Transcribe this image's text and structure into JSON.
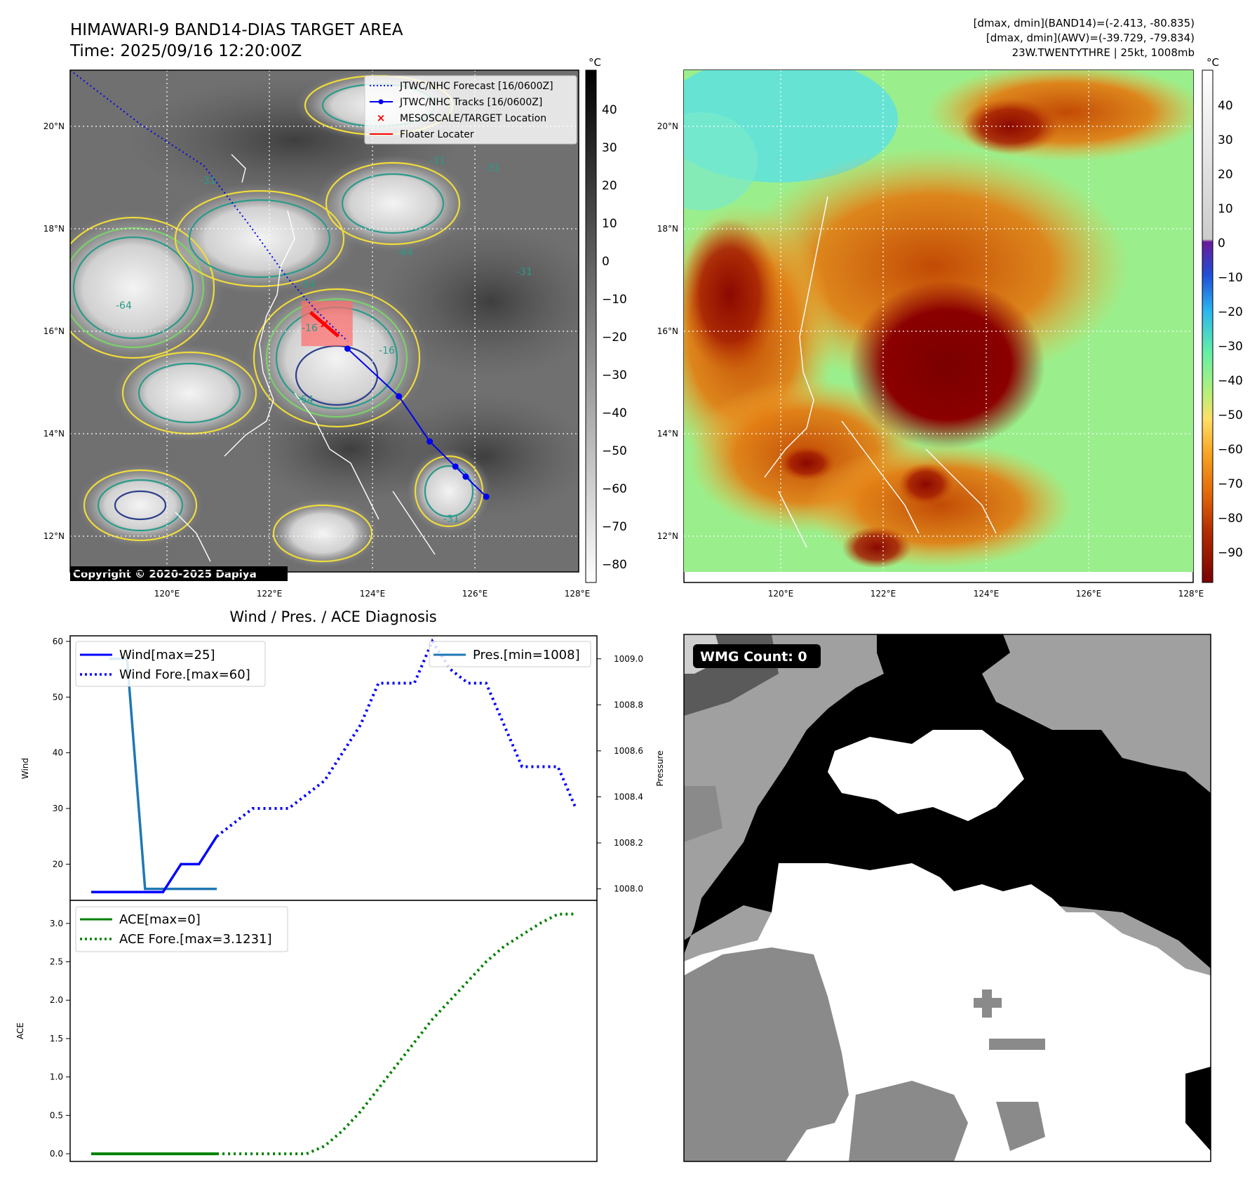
{
  "header": {
    "title": "HIMAWARI-9 BAND14-DIAS TARGET AREA",
    "time": "Time: 2025/09/16 12:20:00Z",
    "info_line1": "[dmax, dmin](BAND14)=(-2.413, -80.835)",
    "info_line2": "[dmax, dmin](AWV)=(-39.729, -79.834)",
    "info_line3": "23W.TWENTYTHRE | 25kt, 1008mb",
    "copyright": "Copyright © 2020-2025 Dapiya"
  },
  "colors": {
    "forecast_track": "#0000ee",
    "observed_track": "#0000ee",
    "target_marker": "#ff0000",
    "target_box": "#ff6b6b",
    "wind": "#0000ff",
    "pressure": "#1f77b4",
    "ace": "#008000"
  },
  "maps": {
    "lon_ticks": [
      "120°E",
      "122°E",
      "124°E",
      "126°E",
      "128°E"
    ],
    "lat_ticks": [
      "20°N",
      "18°N",
      "16°N",
      "14°N",
      "12°N"
    ],
    "extent": {
      "lon_min": 118.1,
      "lon_max": 128.0,
      "lat_min": 11.1,
      "lat_max": 21.1
    },
    "left_colorbar": {
      "unit": "°C",
      "ticks": [
        "40",
        "30",
        "20",
        "10",
        "0",
        "−10",
        "−20",
        "−30",
        "−40",
        "−50",
        "−60",
        "−70",
        "−80"
      ]
    },
    "right_colorbar": {
      "unit": "°C",
      "ticks": [
        "40",
        "30",
        "20",
        "10",
        "0",
        "−10",
        "−20",
        "−30",
        "−40",
        "−50",
        "−60",
        "−70",
        "−80",
        "−90"
      ]
    },
    "legend": [
      {
        "label": "JTWC/NHC Forecast [16/0600Z]",
        "style": "dotted"
      },
      {
        "label": "JTWC/NHC Tracks [16/0600Z]",
        "style": "line-dot"
      },
      {
        "label": "MESOSCALE/TARGET Location",
        "style": "x"
      },
      {
        "label": "Floater Locater",
        "style": "red-line"
      }
    ],
    "forecast_track": [
      [
        118.1,
        21.1
      ],
      [
        119.5,
        20.0
      ],
      [
        120.7,
        19.2
      ],
      [
        121.6,
        18.0
      ],
      [
        122.3,
        17.0
      ],
      [
        122.9,
        16.3
      ],
      [
        123.5,
        15.7
      ]
    ],
    "observed_track": [
      {
        "lon": 123.5,
        "lat": 15.55
      },
      {
        "lon": 124.5,
        "lat": 14.6
      },
      {
        "lon": 125.1,
        "lat": 13.7
      },
      {
        "lon": 125.6,
        "lat": 13.2
      },
      {
        "lon": 125.8,
        "lat": 13.0
      },
      {
        "lon": 126.2,
        "lat": 12.6
      }
    ],
    "target_box": {
      "lon_min": 122.6,
      "lon_max": 123.6,
      "lat_min": 15.6,
      "lat_max": 16.5
    },
    "target_location": {
      "lon": 123.05,
      "lat": 16.05
    },
    "contour_labels": [
      "-31",
      "-31",
      "-31",
      "-31",
      "-54",
      "-64",
      "-64",
      "-16",
      "-16",
      "-54",
      "-31"
    ]
  },
  "wmg": {
    "label": "WMG Count: 0"
  },
  "chart_data": [
    {
      "type": "line",
      "title": "Wind / Pres. / ACE Diagnosis",
      "ylabel": "Wind",
      "ylabel_right": "Pressure",
      "ylim": [
        13.5,
        61
      ],
      "y_ticks": [
        "20",
        "30",
        "40",
        "50",
        "60"
      ],
      "ylim_right": [
        1007.95,
        1009.1
      ],
      "y_ticks_right": [
        "1008.0",
        "1008.2",
        "1008.4",
        "1008.6",
        "1008.8",
        "1009.0"
      ],
      "series": [
        {
          "name": "Wind[max=25]",
          "axis": "left",
          "style": "solid",
          "x": [
            0,
            3,
            4,
            5,
            6,
            7
          ],
          "values": [
            15,
            15,
            15,
            20,
            20,
            25
          ]
        },
        {
          "name": "Wind Fore.[max=60]",
          "axis": "left",
          "style": "dotted",
          "x": [
            7,
            8,
            9,
            10,
            11,
            12,
            13,
            14,
            15,
            16,
            17,
            18,
            19,
            20,
            21,
            22,
            23,
            24,
            25,
            26,
            27
          ],
          "values": [
            25,
            27.5,
            30,
            30,
            30,
            32.5,
            35,
            40,
            45,
            52.5,
            52.5,
            52.5,
            60,
            55,
            52.5,
            52.5,
            45,
            37.5,
            37.5,
            37.5,
            30
          ]
        },
        {
          "name": "Pres.[min=1008]",
          "axis": "right",
          "style": "solid",
          "x": [
            1,
            2,
            3,
            4,
            5,
            6,
            7
          ],
          "values": [
            1009.0,
            1009.0,
            1008.0,
            1008.0,
            1008.0,
            1008.0,
            1008.0
          ]
        }
      ]
    },
    {
      "type": "line",
      "ylabel": "ACE",
      "ylim": [
        -0.1,
        3.3
      ],
      "y_ticks": [
        "0.0",
        "0.5",
        "1.0",
        "1.5",
        "2.0",
        "2.5",
        "3.0"
      ],
      "series": [
        {
          "name": "ACE[max=0]",
          "style": "solid",
          "x": [
            0,
            7
          ],
          "values": [
            0,
            0
          ]
        },
        {
          "name": "ACE Fore.[max=3.1231]",
          "style": "dotted",
          "x": [
            7,
            12,
            13,
            14,
            15,
            16,
            17,
            18,
            19,
            20,
            21,
            22,
            23,
            24,
            25,
            26,
            27
          ],
          "values": [
            0,
            0,
            0.1,
            0.3,
            0.55,
            0.85,
            1.15,
            1.45,
            1.75,
            2.0,
            2.25,
            2.5,
            2.7,
            2.85,
            3.0,
            3.12,
            3.1231
          ]
        }
      ]
    }
  ]
}
